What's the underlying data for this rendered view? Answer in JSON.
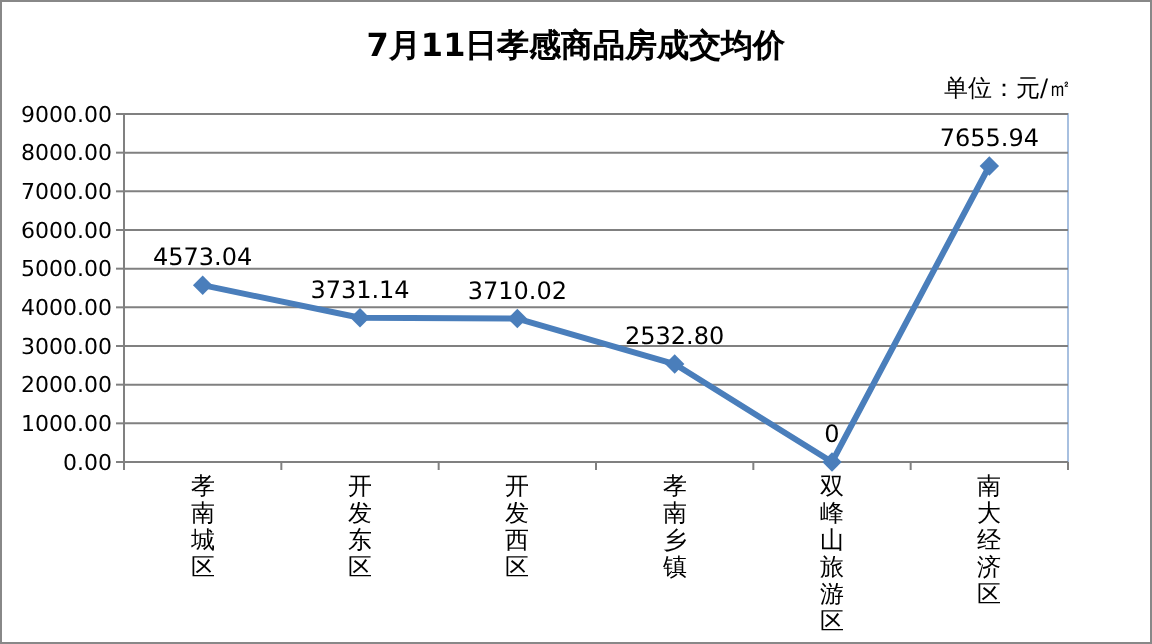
{
  "chart_data": {
    "type": "line",
    "title": "7月11日孝感商品房成交均价",
    "subtitle": "单位：元/㎡",
    "categories": [
      "孝南城区",
      "开发东区",
      "开发西区",
      "孝南乡镇",
      "双峰山旅游区",
      "南大经济区"
    ],
    "series": [
      {
        "color": "#4a7ebb",
        "values": [
          4573.04,
          3731.14,
          3710.02,
          2532.8,
          0,
          7655.94
        ],
        "value_labels": [
          "4573.04",
          "3731.14",
          "3710.02",
          "2532.80",
          "0",
          "7655.94"
        ]
      }
    ],
    "ylim": [
      0,
      9000
    ],
    "yticks": [
      {
        "value": 0,
        "label": "0.00"
      },
      {
        "value": 1000,
        "label": "1000.00"
      },
      {
        "value": 2000,
        "label": "2000.00"
      },
      {
        "value": 3000,
        "label": "3000.00"
      },
      {
        "value": 4000,
        "label": "4000.00"
      },
      {
        "value": 5000,
        "label": "5000.00"
      },
      {
        "value": 6000,
        "label": "6000.00"
      },
      {
        "value": 7000,
        "label": "7000.00"
      },
      {
        "value": 8000,
        "label": "8000.00"
      },
      {
        "value": 9000,
        "label": "9000.00"
      }
    ],
    "grid": "y",
    "marker": "diamond",
    "line_style": "solid"
  }
}
